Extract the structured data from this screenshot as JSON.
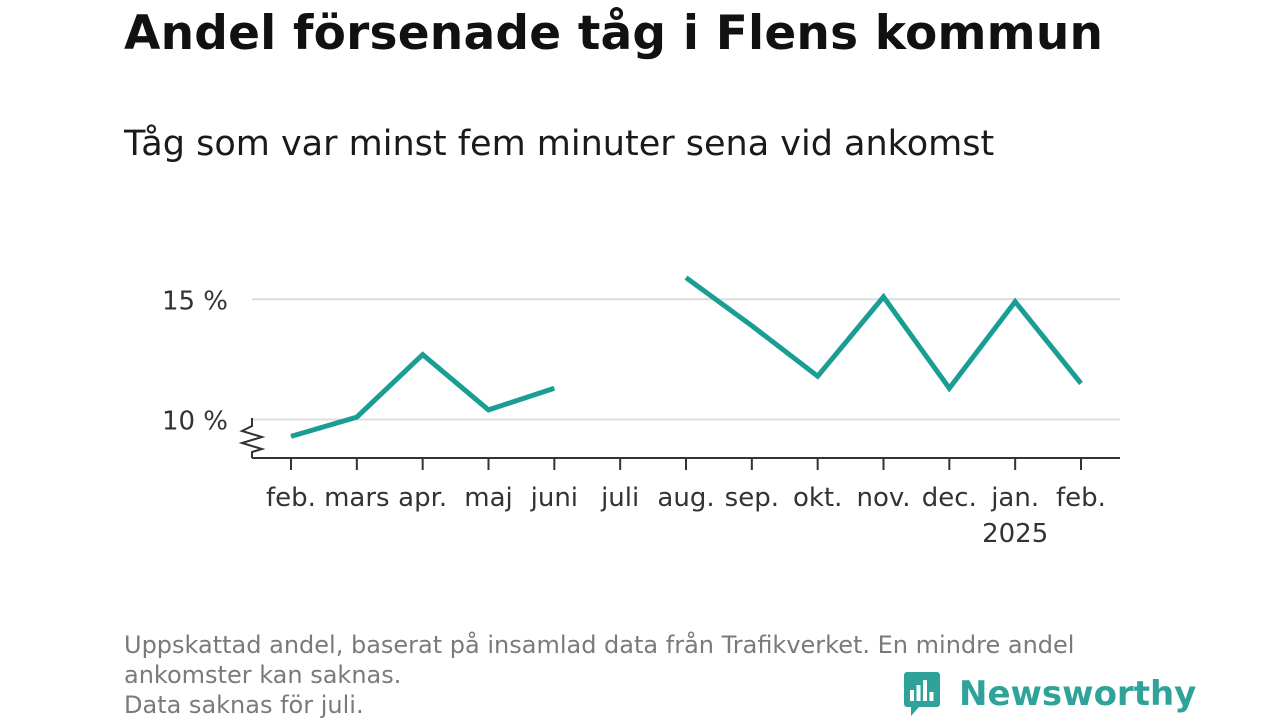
{
  "title": "Andel försenade tåg i Flens kommun",
  "subtitle": "Tåg som var minst fem minuter sena vid ankomst",
  "notes": [
    "Uppskattad andel, baserat på insamlad data från Trafikverket. En mindre andel",
    "ankomster kan saknas.",
    "Data saknas för juli."
  ],
  "brand": {
    "name": "Newsworthy",
    "color": "#2fa29a"
  },
  "chart_data": {
    "type": "line",
    "title": "Andel försenade tåg i Flens kommun",
    "subtitle": "Tåg som var minst fem minuter sena vid ankomst",
    "categories": [
      "feb.",
      "mars",
      "apr.",
      "maj",
      "juni",
      "juli",
      "aug.",
      "sep.",
      "okt.",
      "nov.",
      "dec.",
      "jan.",
      "feb."
    ],
    "year_labels": {
      "11": "2025"
    },
    "values": [
      9.3,
      10.1,
      12.7,
      10.4,
      11.3,
      null,
      15.9,
      13.9,
      11.8,
      15.1,
      11.3,
      14.9,
      11.5
    ],
    "y_ticks": [
      10,
      15
    ],
    "y_tick_labels": [
      "10 %",
      "15 %"
    ],
    "ylim": [
      8.4,
      16.3
    ],
    "y_axis_break": true,
    "grid": true,
    "line_color": "#1a9e94"
  }
}
